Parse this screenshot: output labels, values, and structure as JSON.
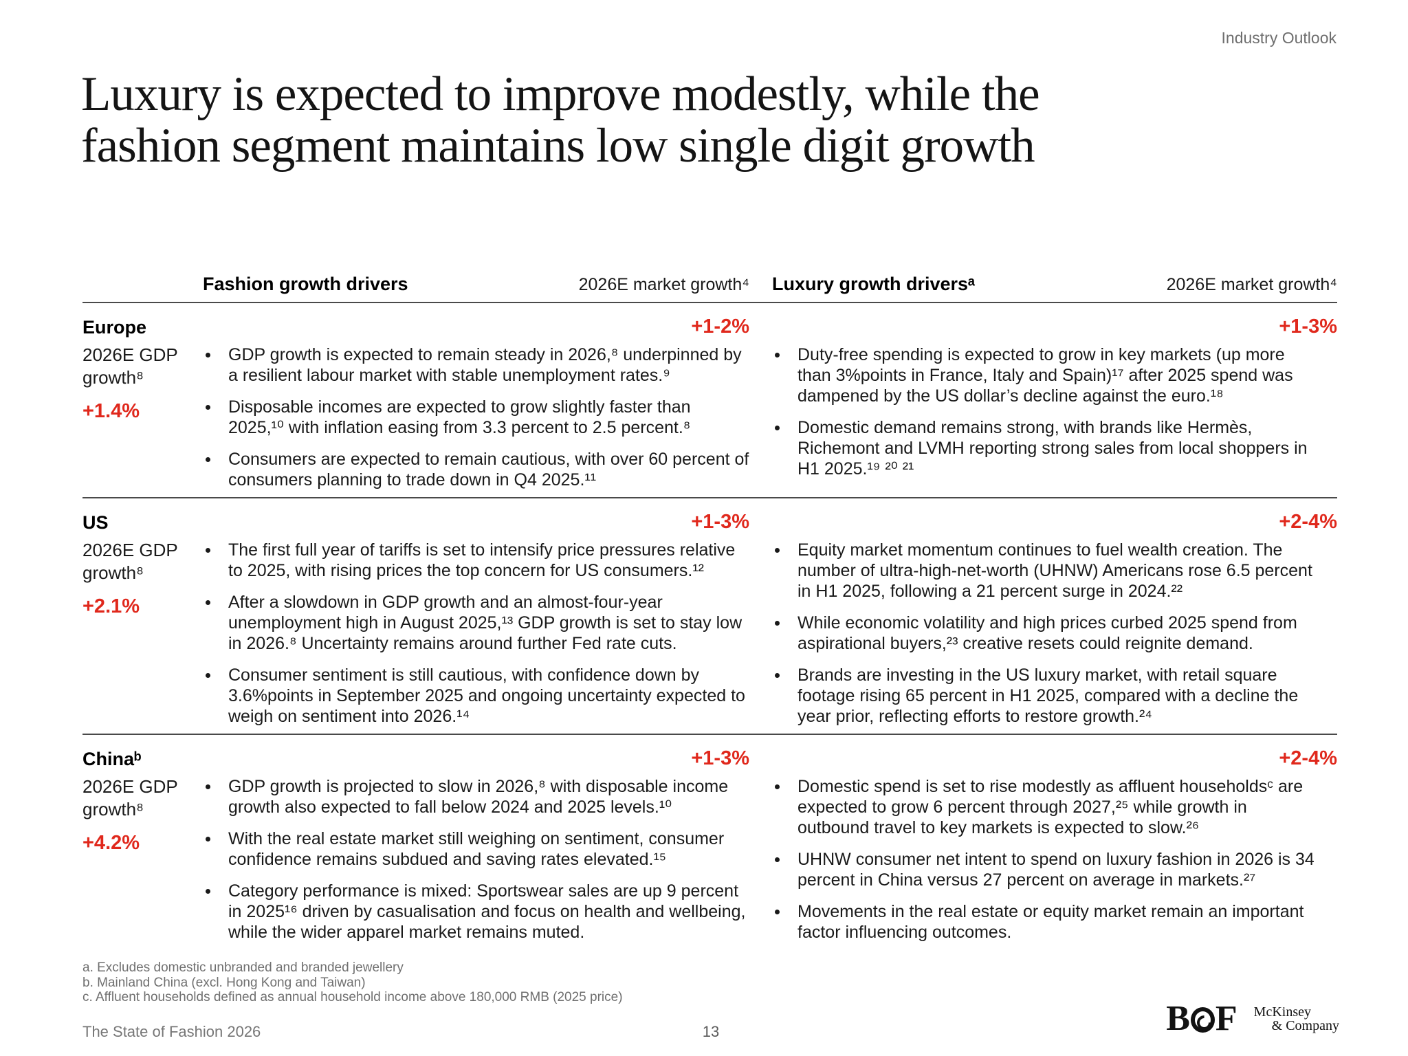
{
  "page": {
    "eyebrow": "Industry Outlook",
    "title": "Luxury is expected to improve modestly, while the\nfashion segment maintains low single digit growth"
  },
  "colors": {
    "accent_red": "#e0281c",
    "divider": "#4a4a4a",
    "muted_gray": "#6e6e6e"
  },
  "table": {
    "fashion_header": "Fashion growth drivers",
    "luxury_header": "Luxury growth driversᵃ",
    "market_growth_header_fashion": "2026E market growth⁴",
    "market_growth_header_luxury": "2026E market growth⁴",
    "rows": [
      {
        "region": "Europe",
        "gdp_label": "2026E GDP growth⁸",
        "gdp_value": "+1.4%",
        "fashion_growth": "+1-2%",
        "luxury_growth": "+1-3%",
        "fashion_bullets": [
          "GDP growth is expected to remain steady in 2026,⁸ underpinned by a resilient labour market with stable unemployment rates.⁹",
          "Disposable incomes are expected to grow slightly faster than 2025,¹⁰ with inflation easing from 3.3 percent to 2.5 percent.⁸",
          "Consumers are expected to remain cautious, with over 60 percent of consumers planning to trade down in Q4 2025.¹¹"
        ],
        "luxury_bullets": [
          "Duty-free spending is expected to grow in key markets (up more than 3%points in France, Italy and Spain)¹⁷ after 2025 spend was dampened by the US dollar’s decline against the euro.¹⁸",
          "Domestic demand remains strong, with brands like Hermès, Richemont and LVMH reporting strong sales from local shoppers in H1 2025.¹⁹ ²⁰ ²¹"
        ]
      },
      {
        "region": "US",
        "gdp_label": "2026E GDP growth⁸",
        "gdp_value": "+2.1%",
        "fashion_growth": "+1-3%",
        "luxury_growth": "+2-4%",
        "fashion_bullets": [
          "The first full year of tariffs is set to intensify price pressures relative to 2025, with rising prices the top concern for US consumers.¹²",
          "After a slowdown in GDP growth and an almost-four-year unemployment high in August 2025,¹³ GDP growth is set to stay low in 2026.⁸ Uncertainty remains around further Fed rate cuts.",
          "Consumer sentiment is still cautious, with confidence down by 3.6%points in September 2025 and ongoing uncertainty expected to weigh on sentiment into 2026.¹⁴"
        ],
        "luxury_bullets": [
          "Equity market momentum continues to fuel wealth creation. The number of ultra-high-net-worth (UHNW) Americans rose 6.5 percent in H1 2025, following a 21 percent surge in 2024.²²",
          "While economic volatility and high prices curbed 2025 spend from aspirational buyers,²³ creative resets could reignite demand.",
          "Brands are investing in the US luxury market, with retail square footage rising 65 percent in H1 2025, compared with a decline the year prior, reflecting efforts to restore growth.²⁴"
        ]
      },
      {
        "region": "Chinaᵇ",
        "gdp_label": "2026E GDP growth⁸",
        "gdp_value": "+4.2%",
        "fashion_growth": "+1-3%",
        "luxury_growth": "+2-4%",
        "fashion_bullets": [
          "GDP growth is projected to slow in 2026,⁸ with disposable income growth also expected to fall below 2024 and 2025 levels.¹⁰",
          "With the real estate market still weighing on sentiment, consumer confidence remains subdued and saving rates elevated.¹⁵",
          "Category performance is mixed: Sportswear sales are up 9 percent in 2025¹⁶ driven by casualisation and focus on health and wellbeing, while the wider apparel market remains muted."
        ],
        "luxury_bullets": [
          "Domestic spend is set to rise modestly as affluent householdsᶜ are expected to grow 6 percent through 2027,²⁵ while growth in outbound travel to key markets is expected to slow.²⁶",
          "UHNW consumer net intent to spend on luxury fashion in 2026 is 34 percent in China versus 27 percent on average in markets.²⁷",
          "Movements in the real estate or equity market remain an important factor influencing outcomes."
        ]
      }
    ]
  },
  "footnotes": [
    "a. Excludes domestic unbranded and branded jewellery",
    "b. Mainland China (excl. Hong Kong and Taiwan)",
    "c. Affluent households defined as annual household income above 180,000 RMB (2025 price)"
  ],
  "footer": {
    "report_title": "The State of Fashion 2026",
    "page_number": "13",
    "bof_b": "B",
    "bof_f": "F",
    "mckinsey_line1": "McKinsey",
    "mckinsey_line2": "& Company"
  }
}
